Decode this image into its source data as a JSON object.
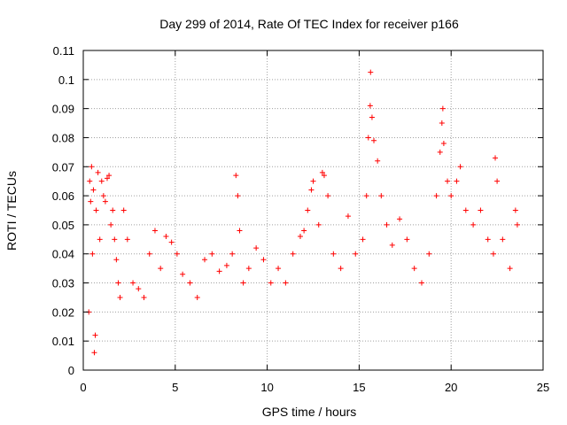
{
  "chart_data": {
    "type": "scatter",
    "title": "Day 299 of 2014, Rate Of TEC Index for receiver p166",
    "xlabel": "GPS time / hours",
    "ylabel": "ROTI / TECUs",
    "xlim": [
      0,
      25
    ],
    "ylim": [
      0,
      0.11
    ],
    "x_ticks": [
      0,
      5,
      10,
      15,
      20,
      25
    ],
    "y_ticks": [
      0,
      0.01,
      0.02,
      0.03,
      0.04,
      0.05,
      0.06,
      0.07,
      0.08,
      0.09,
      0.1,
      0.11
    ],
    "x_tick_labels": [
      "0",
      "5",
      "10",
      "15",
      "20",
      "25"
    ],
    "y_tick_labels": [
      "0",
      "0.01",
      "0.02",
      "0.03",
      "0.04",
      "0.05",
      "0.06",
      "0.07",
      "0.08",
      "0.09",
      "0.1",
      "0.11"
    ],
    "grid": true,
    "marker": "+",
    "marker_color": "#ff0000",
    "series": [
      {
        "points": [
          [
            0.3,
            0.02
          ],
          [
            0.35,
            0.065
          ],
          [
            0.4,
            0.058
          ],
          [
            0.45,
            0.07
          ],
          [
            0.5,
            0.04
          ],
          [
            0.55,
            0.062
          ],
          [
            0.6,
            0.006
          ],
          [
            0.65,
            0.012
          ],
          [
            0.7,
            0.055
          ],
          [
            0.8,
            0.068
          ],
          [
            0.9,
            0.045
          ],
          [
            1.0,
            0.065
          ],
          [
            1.1,
            0.06
          ],
          [
            1.2,
            0.058
          ],
          [
            1.3,
            0.066
          ],
          [
            1.4,
            0.067
          ],
          [
            1.5,
            0.05
          ],
          [
            1.6,
            0.055
          ],
          [
            1.7,
            0.045
          ],
          [
            1.8,
            0.038
          ],
          [
            1.9,
            0.03
          ],
          [
            2.0,
            0.025
          ],
          [
            2.2,
            0.055
          ],
          [
            2.4,
            0.045
          ],
          [
            2.7,
            0.03
          ],
          [
            3.0,
            0.028
          ],
          [
            3.3,
            0.025
          ],
          [
            3.6,
            0.04
          ],
          [
            3.9,
            0.048
          ],
          [
            4.2,
            0.035
          ],
          [
            4.5,
            0.046
          ],
          [
            4.8,
            0.044
          ],
          [
            5.1,
            0.04
          ],
          [
            5.4,
            0.033
          ],
          [
            5.8,
            0.03
          ],
          [
            6.2,
            0.025
          ],
          [
            6.6,
            0.038
          ],
          [
            7.0,
            0.04
          ],
          [
            7.4,
            0.034
          ],
          [
            7.8,
            0.036
          ],
          [
            8.1,
            0.04
          ],
          [
            8.3,
            0.067
          ],
          [
            8.4,
            0.06
          ],
          [
            8.5,
            0.048
          ],
          [
            8.7,
            0.03
          ],
          [
            9.0,
            0.035
          ],
          [
            9.4,
            0.042
          ],
          [
            9.8,
            0.038
          ],
          [
            10.2,
            0.03
          ],
          [
            10.6,
            0.035
          ],
          [
            11.0,
            0.03
          ],
          [
            11.4,
            0.04
          ],
          [
            11.8,
            0.046
          ],
          [
            12.0,
            0.048
          ],
          [
            12.2,
            0.055
          ],
          [
            12.4,
            0.062
          ],
          [
            12.5,
            0.065
          ],
          [
            12.8,
            0.05
          ],
          [
            13.0,
            0.068
          ],
          [
            13.1,
            0.067
          ],
          [
            13.3,
            0.06
          ],
          [
            13.6,
            0.04
          ],
          [
            14.0,
            0.035
          ],
          [
            14.4,
            0.053
          ],
          [
            14.8,
            0.04
          ],
          [
            15.2,
            0.045
          ],
          [
            15.4,
            0.06
          ],
          [
            15.5,
            0.08
          ],
          [
            15.6,
            0.091
          ],
          [
            15.62,
            0.1025
          ],
          [
            15.7,
            0.087
          ],
          [
            15.8,
            0.079
          ],
          [
            16.0,
            0.072
          ],
          [
            16.2,
            0.06
          ],
          [
            16.5,
            0.05
          ],
          [
            16.8,
            0.043
          ],
          [
            17.2,
            0.052
          ],
          [
            17.6,
            0.045
          ],
          [
            18.0,
            0.035
          ],
          [
            18.4,
            0.03
          ],
          [
            18.8,
            0.04
          ],
          [
            19.2,
            0.06
          ],
          [
            19.4,
            0.075
          ],
          [
            19.5,
            0.085
          ],
          [
            19.55,
            0.09
          ],
          [
            19.6,
            0.078
          ],
          [
            19.8,
            0.065
          ],
          [
            20.0,
            0.06
          ],
          [
            20.3,
            0.065
          ],
          [
            20.5,
            0.07
          ],
          [
            20.8,
            0.055
          ],
          [
            21.2,
            0.05
          ],
          [
            21.6,
            0.055
          ],
          [
            22.0,
            0.045
          ],
          [
            22.3,
            0.04
          ],
          [
            22.4,
            0.073
          ],
          [
            22.5,
            0.065
          ],
          [
            22.8,
            0.045
          ],
          [
            23.2,
            0.035
          ],
          [
            23.5,
            0.055
          ],
          [
            23.6,
            0.05
          ]
        ]
      }
    ]
  }
}
